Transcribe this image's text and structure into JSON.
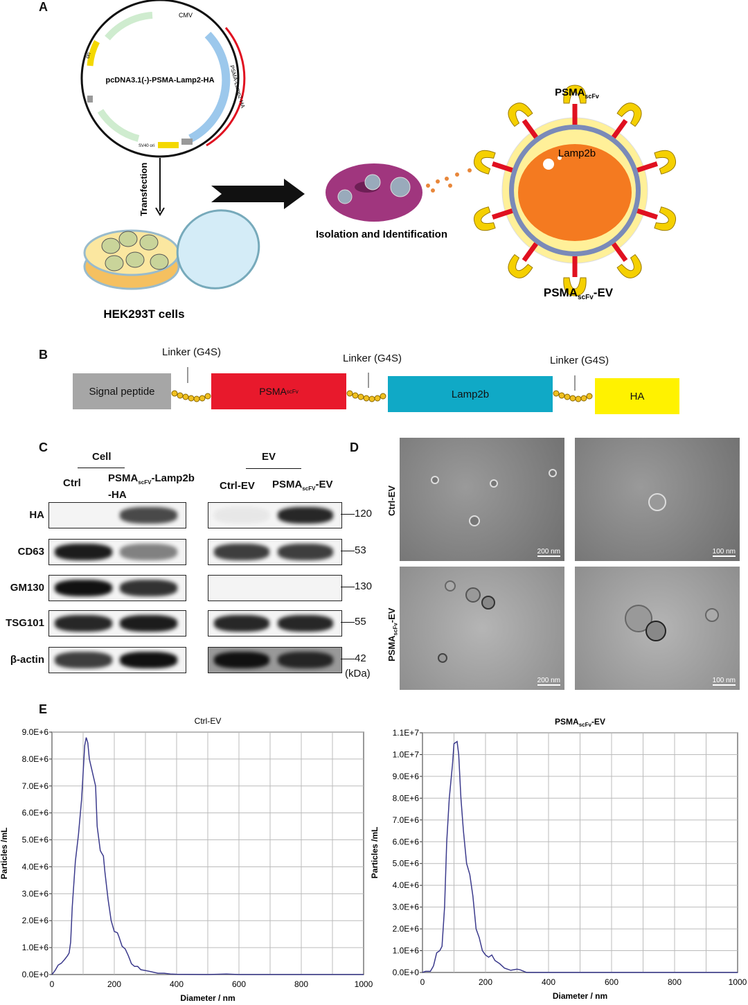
{
  "panels": {
    "a": "A",
    "b": "B",
    "c": "C",
    "d": "D",
    "e": "E"
  },
  "panel_a": {
    "plasmid_name": "pcDNA3.1(-)-PSMA-Lamp2-HA",
    "plasmid_features": [
      "CMV",
      "ori",
      "PSMA-Lamp2-HA",
      "SV40 ori"
    ],
    "transfection": "Transfection",
    "cells": "HEK293T cells",
    "isolation": "Isolation and Identification",
    "receptor_label": "PSMA",
    "receptor_sub": "scFv",
    "lamp_label": "Lamp2b",
    "ev_label": "PSMA",
    "ev_sub": "scFv",
    "ev_suffix": "-EV"
  },
  "panel_b": {
    "linker": "Linker (G4S)",
    "segments": [
      {
        "label": "Signal peptide",
        "color": "#a6a6a6"
      },
      {
        "label": "PSMA",
        "sub": "scFv",
        "color": "#e8192c"
      },
      {
        "label": "Lamp2b",
        "color": "#10a9c6"
      },
      {
        "label": "HA",
        "color": "#fff200"
      }
    ]
  },
  "panel_c": {
    "cell_header": "Cell",
    "ev_header": "EV",
    "cell_lanes": [
      "Ctrl",
      "PSMA",
      "scFV",
      "-Lamp2b",
      "-HA"
    ],
    "ev_lanes": [
      "Ctrl-EV",
      "PSMA",
      "scFV",
      "-EV"
    ],
    "rows": [
      {
        "label": "HA",
        "kda": "120"
      },
      {
        "label": "CD63",
        "kda": "53"
      },
      {
        "label": "GM130",
        "kda": "130"
      },
      {
        "label": "TSG101",
        "kda": "55"
      },
      {
        "label": "β-actin",
        "kda": "42"
      }
    ],
    "kda_unit": "(kDa)"
  },
  "panel_d": {
    "row_labels": [
      "Ctrl-EV",
      "PSMA",
      "scFv",
      "-EV"
    ],
    "scales": [
      "200 nm",
      "100 nm",
      "200 nm",
      "100 nm"
    ]
  },
  "chart_data": [
    {
      "type": "line",
      "title": "Ctrl-EV",
      "xlabel": "Diameter / nm",
      "ylabel": "Particles /mL",
      "xlim": [
        0,
        1000
      ],
      "ylim": [
        0,
        9000000
      ],
      "grid": true,
      "line_color": "#3b3a8c",
      "xticks": [
        "0",
        "200",
        "400",
        "600",
        "800",
        "1000"
      ],
      "yticks": [
        "0.0E+0",
        "1.0E+6",
        "2.0E+6",
        "3.0E+6",
        "4.0E+6",
        "5.0E+6",
        "6.0E+6",
        "7.0E+6",
        "8.0E+6",
        "9.0E+6"
      ],
      "x": [
        0,
        10,
        20,
        30,
        40,
        50,
        55,
        60,
        65,
        75,
        85,
        95,
        105,
        110,
        115,
        120,
        130,
        140,
        145,
        155,
        160,
        165,
        170,
        180,
        190,
        200,
        210,
        215,
        225,
        235,
        245,
        255,
        265,
        275,
        285,
        300,
        320,
        340,
        360,
        380,
        400,
        500,
        560,
        600,
        1000
      ],
      "y": [
        0,
        150000,
        350000,
        420000,
        550000,
        700000,
        800000,
        1200000,
        2500000,
        4200000,
        5200000,
        6500000,
        8500000,
        8800000,
        8600000,
        8000000,
        7500000,
        7000000,
        5500000,
        4600000,
        4500000,
        4400000,
        3800000,
        2800000,
        2000000,
        1600000,
        1550000,
        1400000,
        1050000,
        950000,
        700000,
        400000,
        300000,
        300000,
        180000,
        150000,
        100000,
        50000,
        50000,
        20000,
        10000,
        0,
        20000,
        0,
        0
      ]
    },
    {
      "type": "line",
      "title": "PSMA",
      "title_sub": "scFv",
      "title_suffix": "-EV",
      "xlabel": "Diameter / nm",
      "ylabel": "Particles /mL",
      "xlim": [
        0,
        1000
      ],
      "ylim": [
        0,
        11000000
      ],
      "grid": true,
      "line_color": "#3b3a8c",
      "xticks": [
        "0",
        "200",
        "400",
        "600",
        "800",
        "1000"
      ],
      "yticks": [
        "0.0E+0",
        "1.0E+6",
        "2.0E+6",
        "3.0E+6",
        "4.0E+6",
        "5.0E+6",
        "6.0E+6",
        "7.0E+6",
        "8.0E+6",
        "9.0E+6",
        "1.0E+7",
        "1.1E+7"
      ],
      "x": [
        0,
        10,
        25,
        35,
        45,
        55,
        62,
        70,
        77,
        85,
        95,
        100,
        110,
        115,
        122,
        130,
        140,
        150,
        160,
        170,
        180,
        190,
        200,
        210,
        220,
        230,
        245,
        260,
        280,
        300,
        310,
        330,
        400,
        1000
      ],
      "y": [
        0,
        50000,
        50000,
        300000,
        900000,
        1000000,
        1200000,
        3000000,
        6000000,
        8000000,
        9500000,
        10500000,
        10600000,
        10000000,
        8000000,
        6500000,
        5000000,
        4500000,
        3500000,
        2000000,
        1600000,
        1000000,
        800000,
        700000,
        800000,
        550000,
        400000,
        200000,
        100000,
        150000,
        120000,
        0,
        0,
        0
      ]
    }
  ]
}
